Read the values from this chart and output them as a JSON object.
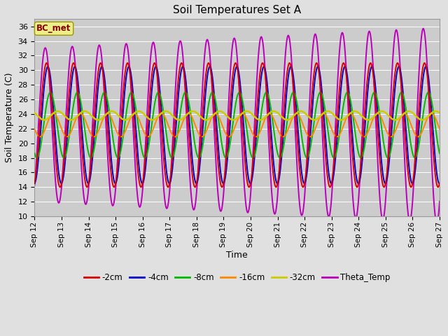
{
  "title": "Soil Temperatures Set A",
  "xlabel": "Time",
  "ylabel": "Soil Temperature (C)",
  "ylim": [
    10,
    37
  ],
  "yticks": [
    10,
    12,
    14,
    16,
    18,
    20,
    22,
    24,
    26,
    28,
    30,
    32,
    34,
    36
  ],
  "fig_bg": "#e0e0e0",
  "plot_bg": "#cccccc",
  "annotation_text": "BC_met",
  "annotation_color": "#8B0000",
  "annotation_bg": "#eeee88",
  "annotation_edge": "#999900",
  "series_colors": {
    "-2cm": "#dd0000",
    "-4cm": "#0000cc",
    "-8cm": "#00bb00",
    "-16cm": "#ff8800",
    "-32cm": "#cccc00",
    "Theta_Temp": "#bb00bb"
  },
  "legend_labels": [
    "-2cm",
    "-4cm",
    "-8cm",
    "-16cm",
    "-32cm",
    "Theta_Temp"
  ],
  "legend_colors": [
    "#dd0000",
    "#0000cc",
    "#00bb00",
    "#ff8800",
    "#cccc00",
    "#bb00bb"
  ],
  "x_start_day": 12,
  "x_end_day": 27,
  "x_tick_days": [
    12,
    13,
    14,
    15,
    16,
    17,
    18,
    19,
    20,
    21,
    22,
    23,
    24,
    25,
    26,
    27
  ],
  "mean_temp": 22.5,
  "amp_2cm": 8.5,
  "amp_4cm": 8.0,
  "amp_8cm": 4.5,
  "amp_16cm": 1.6,
  "amp_32cm": 0.6,
  "amp_th": 10.5,
  "phi_2cm": -1.2,
  "phi_4cm": -1.5,
  "phi_8cm": -2.1,
  "phi_16cm": -2.8,
  "phi_32cm": -3.8,
  "phi_th": -0.9
}
